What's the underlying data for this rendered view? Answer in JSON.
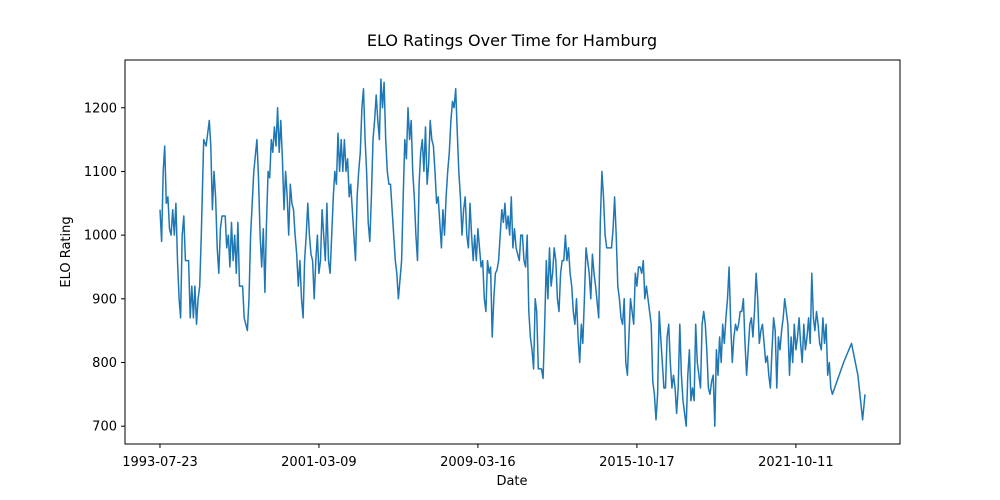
{
  "chart_data": {
    "type": "line",
    "title": "ELO Ratings Over Time for Hamburg",
    "xlabel": "Date",
    "ylabel": "ELO Rating",
    "xlim": [
      -44,
      931
    ],
    "ylim": [
      672,
      1275
    ],
    "xticks": [
      {
        "value": 0,
        "label": "1993-07-23"
      },
      {
        "value": 200,
        "label": "2001-03-09"
      },
      {
        "value": 400,
        "label": "2009-03-16"
      },
      {
        "value": 600,
        "label": "2015-10-17"
      },
      {
        "value": 800,
        "label": "2021-10-11"
      }
    ],
    "yticks": [
      700,
      800,
      900,
      1000,
      1100,
      1200
    ],
    "series": [
      {
        "name": "Hamburg",
        "color": "#1f77b4",
        "x": [
          0,
          2,
          4,
          6,
          8,
          10,
          12,
          14,
          16,
          18,
          20,
          22,
          24,
          26,
          28,
          30,
          32,
          34,
          36,
          38,
          40,
          42,
          44,
          46,
          48,
          50,
          52,
          55,
          58,
          62,
          64,
          66,
          68,
          70,
          72,
          74,
          76,
          78,
          82,
          84,
          86,
          88,
          90,
          92,
          94,
          96,
          98,
          100,
          104,
          106,
          110,
          112,
          114,
          116,
          118,
          122,
          124,
          126,
          128,
          130,
          132,
          134,
          136,
          138,
          140,
          142,
          144,
          146,
          148,
          150,
          152,
          154,
          156,
          158,
          160,
          162,
          164,
          166,
          168,
          170,
          172,
          174,
          176,
          178,
          180,
          182,
          184,
          186,
          188,
          190,
          192,
          194,
          196,
          198,
          200,
          202,
          204,
          206,
          208,
          210,
          212,
          214,
          216,
          218,
          220,
          222,
          224,
          226,
          228,
          230,
          232,
          234,
          236,
          238,
          240,
          242,
          244,
          246,
          248,
          250,
          252,
          254,
          256,
          258,
          260,
          262,
          264,
          266,
          268,
          270,
          272,
          274,
          276,
          278,
          280,
          282,
          284,
          286,
          288,
          290,
          292,
          294,
          296,
          298,
          300,
          302,
          304,
          306,
          308,
          310,
          312,
          314,
          316,
          318,
          320,
          322,
          324,
          326,
          328,
          330,
          332,
          334,
          336,
          338,
          340,
          342,
          344,
          346,
          348,
          350,
          352,
          354,
          356,
          358,
          360,
          362,
          364,
          366,
          368,
          370,
          372,
          374,
          376,
          378,
          380,
          382,
          384,
          386,
          388,
          390,
          392,
          394,
          396,
          398,
          400,
          404,
          406,
          408,
          410,
          412,
          414,
          416,
          418,
          420,
          422,
          424,
          426,
          428,
          430,
          432,
          434,
          436,
          438,
          440,
          442,
          444,
          446,
          448,
          452,
          454,
          456,
          458,
          460,
          462,
          464,
          466,
          468,
          470,
          472,
          474,
          476,
          480,
          482,
          484,
          486,
          488,
          490,
          492,
          494,
          496,
          498,
          500,
          502,
          504,
          506,
          508,
          510,
          512,
          514,
          516,
          518,
          520,
          522,
          524,
          526,
          528,
          530,
          532,
          534,
          536,
          538,
          540,
          542,
          544,
          546,
          548,
          552,
          554,
          556,
          558,
          560,
          562,
          564,
          566,
          568,
          570,
          572,
          574,
          576,
          578,
          580,
          582,
          584,
          586,
          588,
          590,
          592,
          594,
          596,
          598,
          600,
          602,
          604,
          606,
          608,
          610,
          612,
          614,
          616,
          618,
          620,
          622,
          624,
          626,
          628,
          630,
          632,
          634,
          636,
          638,
          640,
          642,
          644,
          646,
          648,
          650,
          652,
          654,
          656,
          658,
          660,
          662,
          664,
          666,
          668,
          670,
          672,
          674,
          676,
          678,
          680,
          682,
          684,
          686,
          688,
          690,
          692,
          694,
          696,
          698,
          700,
          702,
          704,
          706,
          708,
          710,
          712,
          714,
          716,
          718,
          720,
          722,
          724,
          726,
          728,
          730,
          732,
          734,
          736,
          738,
          740,
          742,
          744,
          746,
          748,
          750,
          752,
          754,
          756,
          758,
          760,
          762,
          764,
          766,
          768,
          770,
          772,
          774,
          776,
          778,
          780,
          782,
          784,
          786,
          788,
          790,
          792,
          794,
          796,
          798,
          800,
          802,
          804,
          806,
          808,
          810,
          812,
          814,
          816,
          818,
          820,
          822,
          824,
          826,
          828,
          830,
          832,
          834,
          836,
          838,
          840,
          842,
          844,
          846,
          860,
          870,
          878,
          884,
          887
        ],
        "values": [
          1040,
          990,
          1100,
          1140,
          1050,
          1060,
          1010,
          1000,
          1040,
          1000,
          1050,
          960,
          900,
          870,
          1000,
          1030,
          960,
          960,
          960,
          870,
          920,
          870,
          920,
          860,
          900,
          920,
          1000,
          1150,
          1140,
          1180,
          1140,
          1040,
          1100,
          1060,
          980,
          940,
          1010,
          1030,
          1030,
          980,
          1000,
          950,
          1020,
          960,
          1000,
          940,
          1020,
          920,
          920,
          870,
          850,
          900,
          1000,
          1050,
          1100,
          1150,
          1090,
          1000,
          950,
          1010,
          910,
          1020,
          1100,
          1090,
          1150,
          1130,
          1170,
          1140,
          1200,
          1130,
          1180,
          1120,
          1040,
          1100,
          1060,
          1000,
          1080,
          1050,
          1040,
          1000,
          970,
          920,
          960,
          900,
          870,
          960,
          1000,
          1050,
          1000,
          970,
          960,
          900,
          960,
          1000,
          940,
          960,
          1040,
          1000,
          960,
          1050,
          960,
          940,
          1000,
          1060,
          1100,
          1080,
          1160,
          1100,
          1150,
          1100,
          1150,
          1100,
          1120,
          1060,
          1080,
          1040,
          1000,
          960,
          1060,
          1100,
          1130,
          1200,
          1230,
          1150,
          1100,
          1020,
          990,
          1060,
          1150,
          1180,
          1220,
          1180,
          1150,
          1245,
          1200,
          1240,
          1150,
          1100,
          1080,
          1080,
          1040,
          1000,
          960,
          940,
          900,
          930,
          960,
          1060,
          1150,
          1120,
          1200,
          1150,
          1180,
          1100,
          1060,
          1000,
          960,
          1080,
          1130,
          1150,
          1100,
          1170,
          1080,
          1110,
          1180,
          1150,
          1140,
          1100,
          1050,
          1060,
          1020,
          980,
          1040,
          1000,
          1060,
          1100,
          1130,
          1180,
          1210,
          1200,
          1230,
          1160,
          1100,
          1060,
          1000,
          1040,
          1060,
          1000,
          980,
          1050,
          1000,
          960,
          1000,
          960,
          1010,
          950,
          960,
          900,
          880,
          960,
          940,
          950,
          840,
          900,
          940,
          945,
          960,
          1000,
          1040,
          1020,
          1050,
          1010,
          1030,
          1000,
          1060,
          980,
          1010,
          980,
          960,
          1000,
          1000,
          960,
          950,
          1000,
          880,
          840,
          820,
          790,
          900,
          880,
          790,
          790,
          775,
          860,
          960,
          900,
          980,
          920,
          940,
          980,
          960,
          900,
          880,
          940,
          960,
          960,
          1000,
          960,
          980,
          940,
          920,
          880,
          860,
          900,
          840,
          800,
          860,
          830,
          900,
          980,
          960,
          940,
          900,
          970,
          940,
          920,
          870,
          1020,
          1100,
          1060,
          1000,
          980,
          980,
          980,
          980,
          1010,
          1060,
          1000,
          920,
          900,
          870,
          860,
          900,
          800,
          780,
          840,
          900,
          880,
          860,
          940,
          920,
          950,
          950,
          940,
          960,
          900,
          920,
          900,
          880,
          860,
          770,
          750,
          710,
          750,
          880,
          840,
          800,
          760,
          760,
          840,
          860,
          800,
          760,
          780,
          760,
          720,
          760,
          860,
          780,
          740,
          720,
          700,
          780,
          820,
          740,
          760,
          740,
          860,
          800,
          780,
          760,
          860,
          880,
          860,
          820,
          760,
          750,
          770,
          780,
          700,
          820,
          780,
          840,
          800,
          860,
          830,
          870,
          900,
          950,
          860,
          800,
          840,
          860,
          850,
          860,
          880,
          880,
          900,
          830,
          780,
          820,
          860,
          870,
          840,
          880,
          940,
          900,
          830,
          850,
          860,
          830,
          800,
          810,
          780,
          760,
          820,
          870,
          850,
          760,
          840,
          820,
          850,
          870,
          900,
          880,
          860,
          780,
          840,
          800,
          860,
          820,
          840,
          870,
          830,
          800,
          860,
          820,
          840,
          870,
          830,
          940,
          870,
          850,
          880,
          860,
          830,
          820,
          870,
          830,
          860,
          780,
          800,
          760,
          750,
          800,
          830,
          780,
          710,
          750
        ]
      }
    ]
  }
}
